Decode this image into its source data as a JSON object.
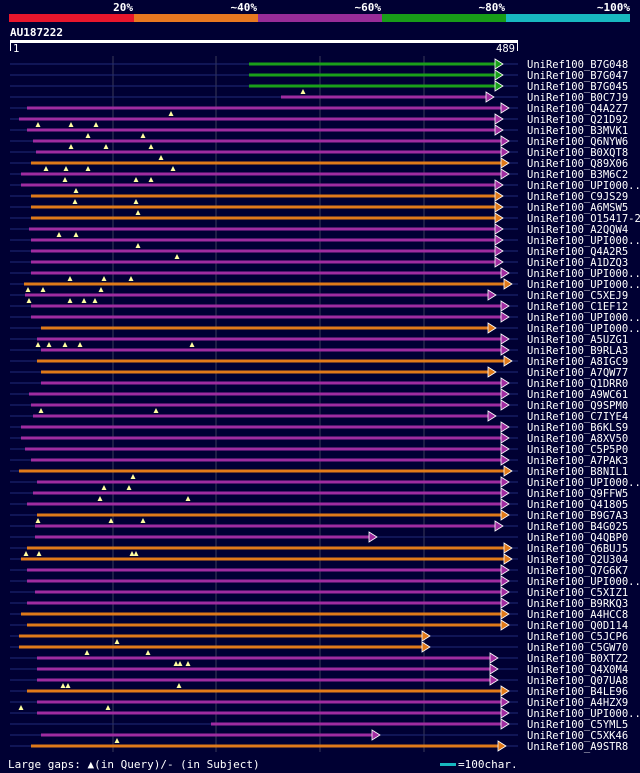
{
  "identity_scale": {
    "ticks": [
      "20%",
      "~40%",
      "~60%",
      "~80%",
      "~100%"
    ],
    "colors": [
      "#e8162c",
      "#e87820",
      "#982c98",
      "#189c18",
      "#18b8c0"
    ]
  },
  "query": {
    "id": "AU187222",
    "start_label": "1",
    "end_label": "489"
  },
  "hits": [
    {
      "name": "UniRef100_B7G048",
      "color": "#1aa01a"
    },
    {
      "name": "UniRef100_B7G047",
      "color": "#1aa01a"
    },
    {
      "name": "UniRef100_B7G045",
      "color": "#1aa01a"
    },
    {
      "name": "UniRef100_B0C7J9",
      "color": "#a02ca0"
    },
    {
      "name": "UniRef100_Q4A2Z7",
      "color": "#a02ca0"
    },
    {
      "name": "UniRef100_Q21D92",
      "color": "#a02ca0"
    },
    {
      "name": "UniRef100_B3MVK1",
      "color": "#a02ca0"
    },
    {
      "name": "UniRef100_Q6NYW6",
      "color": "#a02ca0"
    },
    {
      "name": "UniRef100_B0XQT8",
      "color": "#a02ca0"
    },
    {
      "name": "UniRef100_Q89X06",
      "color": "#e07a1a"
    },
    {
      "name": "UniRef100_B3M6C2",
      "color": "#a02ca0"
    },
    {
      "name": "UniRef100_UPI000..",
      "color": "#a02ca0"
    },
    {
      "name": "UniRef100_C9JS29",
      "color": "#e07a1a"
    },
    {
      "name": "UniRef100_A6MSW5",
      "color": "#e07a1a"
    },
    {
      "name": "UniRef100_O15417-2",
      "color": "#e07a1a"
    },
    {
      "name": "UniRef100_A2QQW4",
      "color": "#a02ca0"
    },
    {
      "name": "UniRef100_UPI000..",
      "color": "#a02ca0"
    },
    {
      "name": "UniRef100_Q4A2R5",
      "color": "#a02ca0"
    },
    {
      "name": "UniRef100_A1DZQ3",
      "color": "#a02ca0"
    },
    {
      "name": "UniRef100_UPI000..",
      "color": "#a02ca0"
    },
    {
      "name": "UniRef100_UPI000..",
      "color": "#e07a1a"
    },
    {
      "name": "UniRef100_C5XEJ9",
      "color": "#a02ca0"
    },
    {
      "name": "UniRef100_C1EF12",
      "color": "#a02ca0"
    },
    {
      "name": "UniRef100_UPI000..",
      "color": "#a02ca0"
    },
    {
      "name": "UniRef100_UPI000..",
      "color": "#e07a1a"
    },
    {
      "name": "UniRef100_A5UZG1",
      "color": "#a02ca0"
    },
    {
      "name": "UniRef100_B9RLA3",
      "color": "#a02ca0"
    },
    {
      "name": "UniRef100_A8IGC9",
      "color": "#e07a1a"
    },
    {
      "name": "UniRef100_A7QW77",
      "color": "#e07a1a"
    },
    {
      "name": "UniRef100_Q1DRR0",
      "color": "#a02ca0"
    },
    {
      "name": "UniRef100_A9WC61",
      "color": "#a02ca0"
    },
    {
      "name": "UniRef100_Q9SPM0",
      "color": "#a02ca0"
    },
    {
      "name": "UniRef100_C7IYE4",
      "color": "#a02ca0"
    },
    {
      "name": "UniRef100_B6KLS9",
      "color": "#a02ca0"
    },
    {
      "name": "UniRef100_A8XV50",
      "color": "#a02ca0"
    },
    {
      "name": "UniRef100_C5P5P0",
      "color": "#a02ca0"
    },
    {
      "name": "UniRef100_A7PAK3",
      "color": "#a02ca0"
    },
    {
      "name": "UniRef100_B8NIL1",
      "color": "#e07a1a"
    },
    {
      "name": "UniRef100_UPI000..",
      "color": "#a02ca0"
    },
    {
      "name": "UniRef100_Q9FFW5",
      "color": "#a02ca0"
    },
    {
      "name": "UniRef100_Q41805",
      "color": "#a02ca0"
    },
    {
      "name": "UniRef100_B9G7A3",
      "color": "#e07a1a"
    },
    {
      "name": "UniRef100_B4G025",
      "color": "#a02ca0"
    },
    {
      "name": "UniRef100_Q4QBP0",
      "color": "#a02ca0"
    },
    {
      "name": "UniRef100_Q6BUJ5",
      "color": "#e07a1a"
    },
    {
      "name": "UniRef100_Q2U304",
      "color": "#e07a1a"
    },
    {
      "name": "UniRef100_Q7G6K7",
      "color": "#a02ca0"
    },
    {
      "name": "UniRef100_UPI000..",
      "color": "#a02ca0"
    },
    {
      "name": "UniRef100_C5XIZ1",
      "color": "#a02ca0"
    },
    {
      "name": "UniRef100_B9RKQ3",
      "color": "#a02ca0"
    },
    {
      "name": "UniRef100_A4HCC8",
      "color": "#e07a1a"
    },
    {
      "name": "UniRef100_Q0D114",
      "color": "#e07a1a"
    },
    {
      "name": "UniRef100_C5JCP6",
      "color": "#e07a1a"
    },
    {
      "name": "UniRef100_C5GW70",
      "color": "#e07a1a"
    },
    {
      "name": "UniRef100_B0XTZ2",
      "color": "#a02ca0"
    },
    {
      "name": "UniRef100_Q4X0M4",
      "color": "#a02ca0"
    },
    {
      "name": "UniRef100_Q07UA8",
      "color": "#a02ca0"
    },
    {
      "name": "UniRef100_B4LE96",
      "color": "#e07a1a"
    },
    {
      "name": "UniRef100_A4HZX9",
      "color": "#a02ca0"
    },
    {
      "name": "UniRef100_UPI000..",
      "color": "#a02ca0"
    },
    {
      "name": "UniRef100_C5YML5",
      "color": "#a02ca0"
    },
    {
      "name": "UniRef100_C5XK46",
      "color": "#a02ca0"
    },
    {
      "name": "UniRef100_A9STR8",
      "color": "#e07a1a"
    }
  ],
  "legend": {
    "gaps_text": "Large gaps: ▲(in Query)/- (in Subject)",
    "scale_text": "=100char."
  }
}
